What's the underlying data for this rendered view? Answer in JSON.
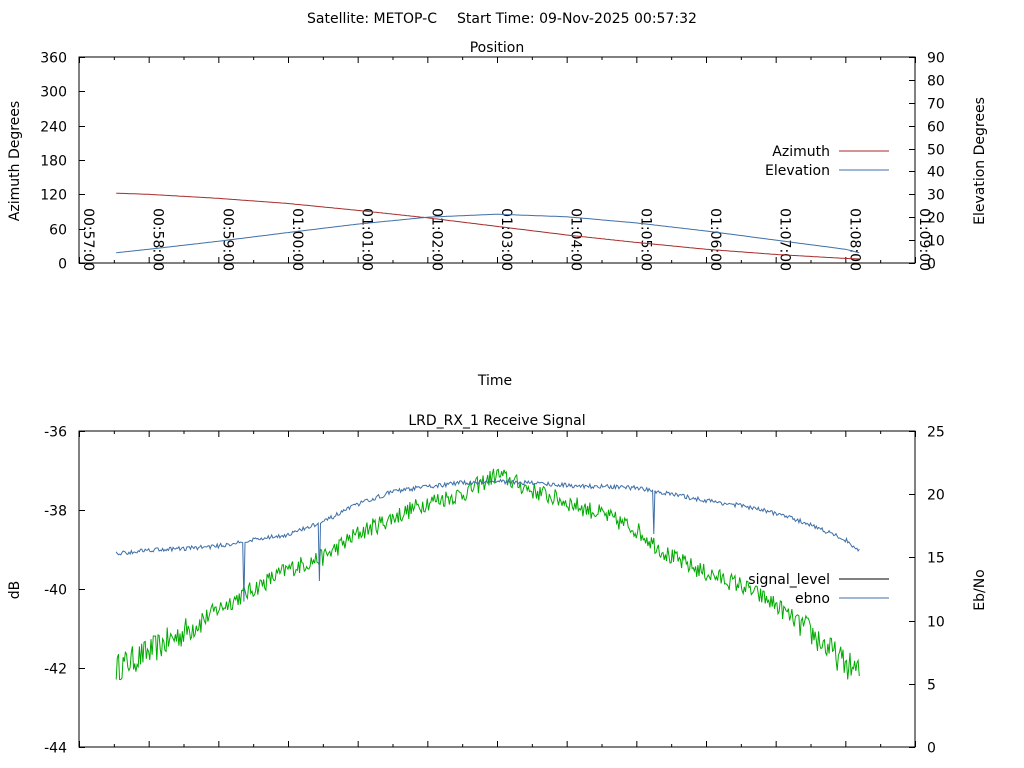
{
  "header": {
    "satellite_text": "Satellite: METOP-C",
    "start_time_text": "Start Time: 09-Nov-2025 00:57:32"
  },
  "chart_data": [
    {
      "type": "line",
      "title": "Position",
      "xlabel": "Time",
      "ylabel": "Azimuth Degrees",
      "y2label": "Elevation Degrees",
      "x_ticks": [
        "00:57:00",
        "00:58:00",
        "00:59:00",
        "01:00:00",
        "01:01:00",
        "01:02:00",
        "01:03:00",
        "01:04:00",
        "01:05:00",
        "01:06:00",
        "01:07:00",
        "01:08:00",
        "01:09:00"
      ],
      "xlim": [
        "00:57:00",
        "01:09:00"
      ],
      "ylim": [
        0,
        360
      ],
      "y_ticks": [
        0,
        60,
        120,
        180,
        240,
        300,
        360
      ],
      "y2lim": [
        0,
        90
      ],
      "y2_ticks": [
        0,
        10,
        20,
        30,
        40,
        50,
        60,
        70,
        80,
        90
      ],
      "grid": false,
      "legend_position": "right",
      "series": [
        {
          "name": "Azimuth",
          "axis": "left",
          "color": "#a52a2a",
          "x": [
            "00:57:32",
            "00:58:00",
            "00:59:00",
            "01:00:00",
            "01:01:00",
            "01:02:00",
            "01:03:00",
            "01:04:00",
            "01:05:00",
            "01:06:00",
            "01:07:00",
            "01:08:00",
            "01:08:12"
          ],
          "y": [
            122,
            120,
            113,
            104,
            92,
            79,
            64,
            49,
            36,
            24,
            15,
            8,
            7
          ]
        },
        {
          "name": "Elevation",
          "axis": "right",
          "color": "#3f6fa7",
          "x": [
            "00:57:32",
            "00:58:00",
            "00:59:00",
            "01:00:00",
            "01:01:00",
            "01:02:00",
            "01:03:00",
            "01:04:00",
            "01:05:00",
            "01:06:00",
            "01:07:00",
            "01:08:00",
            "01:08:12"
          ],
          "y": [
            4.5,
            6,
            9.5,
            13.3,
            17,
            20,
            21.3,
            20.2,
            17.5,
            14,
            10,
            6,
            4.5
          ]
        }
      ]
    },
    {
      "type": "line",
      "title": "LRD_RX_1 Receive Signal",
      "xlabel": "",
      "ylabel": "dB",
      "y2label": "Eb/No",
      "xlim": [
        "00:57:00",
        "01:09:00"
      ],
      "ylim": [
        -44,
        -36
      ],
      "y_ticks": [
        -44,
        -42,
        -40,
        -38,
        -36
      ],
      "y2lim": [
        0,
        25
      ],
      "y2_ticks": [
        0,
        5,
        10,
        15,
        20,
        25
      ],
      "grid": false,
      "legend_position": "right",
      "legend": [
        {
          "name": "signal_level",
          "color": "#000000"
        },
        {
          "name": "ebno",
          "color": "#3f6fa7"
        }
      ],
      "series": [
        {
          "name": "signal_level",
          "axis": "left",
          "color": "#00aa00",
          "x": [
            "00:57:32",
            "00:58:00",
            "00:58:30",
            "00:59:00",
            "00:59:30",
            "01:00:00",
            "01:00:30",
            "01:01:00",
            "01:01:30",
            "01:02:00",
            "01:02:30",
            "01:03:00",
            "01:03:30",
            "01:04:00",
            "01:04:30",
            "01:05:00",
            "01:05:30",
            "01:06:00",
            "01:06:30",
            "01:07:00",
            "01:07:30",
            "01:08:00",
            "01:08:12"
          ],
          "y": [
            -42.0,
            -41.6,
            -41.1,
            -40.5,
            -40.0,
            -39.5,
            -39.2,
            -38.6,
            -38.2,
            -37.8,
            -37.6,
            -37.1,
            -37.5,
            -37.8,
            -38.1,
            -38.5,
            -39.2,
            -39.6,
            -39.9,
            -40.4,
            -41.1,
            -41.9,
            -42.1
          ]
        },
        {
          "name": "ebno",
          "axis": "right",
          "color": "#3f6fa7",
          "x": [
            "00:57:32",
            "00:58:00",
            "00:58:30",
            "00:59:00",
            "00:59:30",
            "01:00:00",
            "01:00:30",
            "01:01:00",
            "01:01:30",
            "01:02:00",
            "01:02:30",
            "01:03:00",
            "01:03:30",
            "01:04:00",
            "01:04:30",
            "01:05:00",
            "01:05:30",
            "01:06:00",
            "01:06:30",
            "01:07:00",
            "01:07:30",
            "01:08:00",
            "01:08:12"
          ],
          "y": [
            15.3,
            15.6,
            15.7,
            15.9,
            16.4,
            16.8,
            17.8,
            19.2,
            20.2,
            20.6,
            20.9,
            21.0,
            20.9,
            20.7,
            20.6,
            20.5,
            20.0,
            19.5,
            19.1,
            18.5,
            17.6,
            16.4,
            15.5
          ]
        }
      ]
    }
  ]
}
